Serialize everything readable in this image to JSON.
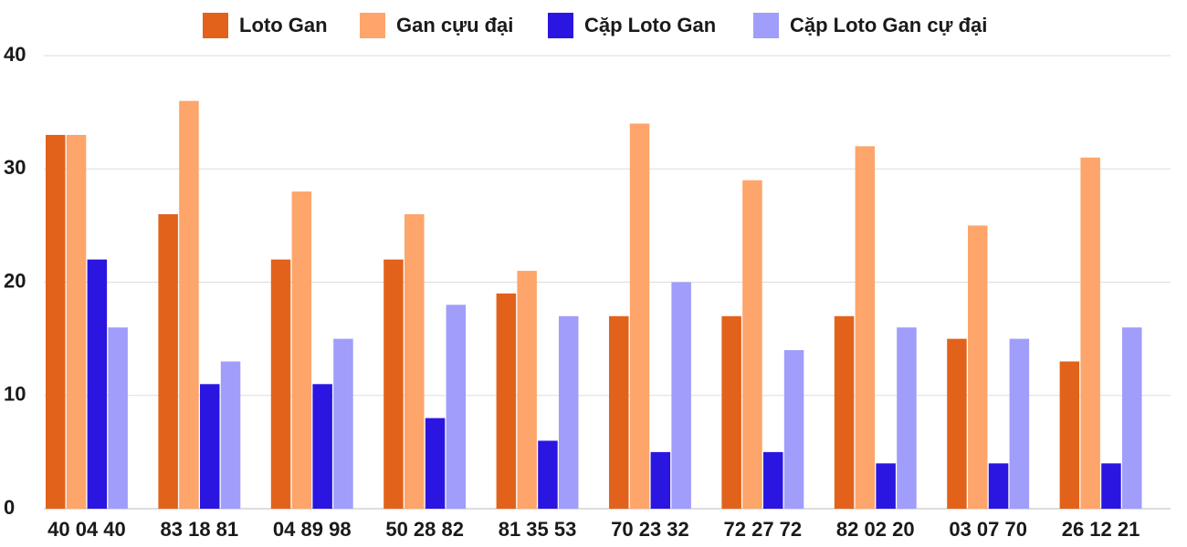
{
  "chart_data": {
    "type": "bar",
    "categories": [
      "40 04 40",
      "83 18 81",
      "04 89 98",
      "50 28 82",
      "81 35 53",
      "70 23 32",
      "72 27 72",
      "82 02 20",
      "03 07 70",
      "26 12 21"
    ],
    "series": [
      {
        "name": "Loto Gan",
        "color": "#e2621b",
        "values": [
          33,
          26,
          22,
          22,
          19,
          17,
          17,
          17,
          15,
          13
        ]
      },
      {
        "name": "Gan cựu đại",
        "color": "#fda56a",
        "values": [
          33,
          36,
          28,
          26,
          21,
          34,
          29,
          32,
          25,
          31
        ]
      },
      {
        "name": "Cặp Loto Gan",
        "color": "#2a16e0",
        "values": [
          22,
          11,
          11,
          8,
          6,
          5,
          5,
          4,
          4,
          4
        ]
      },
      {
        "name": "Cặp Loto Gan cự đại",
        "color": "#a09dfb",
        "values": [
          16,
          13,
          15,
          18,
          17,
          20,
          14,
          16,
          15,
          16
        ]
      }
    ],
    "ylim": [
      0,
      40
    ],
    "yticks": [
      0,
      10,
      20,
      30,
      40
    ],
    "grid": true,
    "legend": "top"
  }
}
